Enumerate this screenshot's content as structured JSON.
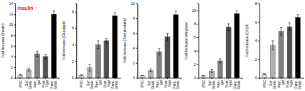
{
  "chart_data": [
    {
      "type": "bar",
      "ylabel": "Fold Increase (Insulin)",
      "categories": [
        "iPSC",
        "Def.\nEndo.",
        "Prim.\ngut",
        "Post.\nFgut",
        "Panc.\nEndo."
      ],
      "values": [
        0.5,
        1.5,
        4.5,
        4.0,
        12.0
      ],
      "errors": [
        0.1,
        0.3,
        0.5,
        0.4,
        0.6
      ],
      "colors": [
        "#d9d9d9",
        "#b0b0b0",
        "#808080",
        "#505050",
        "#000000"
      ],
      "ylim": [
        0,
        14
      ],
      "yticks": [
        0,
        2,
        4,
        6,
        8,
        10,
        12,
        14
      ],
      "annotations": [
        {
          "text": "Insulin ↑",
          "color": "#ff0000"
        }
      ]
    },
    {
      "type": "bar",
      "ylabel": "Fold Increase (Glucagon)",
      "categories": [
        "iPSC",
        "Def.\nEndo.",
        "Prim.\ngut",
        "Post.\nFgut",
        "Panc.\nEndo."
      ],
      "values": [
        0.3,
        1.2,
        4.0,
        4.5,
        7.5
      ],
      "errors": [
        0.05,
        0.4,
        0.5,
        0.3,
        0.4
      ],
      "colors": [
        "#d9d9d9",
        "#b0b0b0",
        "#808080",
        "#505050",
        "#000000"
      ],
      "ylim": [
        0,
        9
      ],
      "yticks": [
        0,
        2,
        4,
        6,
        8
      ]
    },
    {
      "type": "bar",
      "ylabel": "Fold Increase (Somatostatin)",
      "categories": [
        "iPSC",
        "Def.\nEndo.",
        "Prim.\ngut",
        "Post.\nFgut",
        "Panc.\nEndo."
      ],
      "values": [
        0.3,
        1.0,
        3.5,
        5.5,
        8.5
      ],
      "errors": [
        0.05,
        0.2,
        0.4,
        0.5,
        0.5
      ],
      "colors": [
        "#d9d9d9",
        "#b0b0b0",
        "#808080",
        "#505050",
        "#000000"
      ],
      "ylim": [
        0,
        10
      ],
      "yticks": [
        0,
        2,
        4,
        6,
        8,
        10
      ]
    },
    {
      "type": "bar",
      "ylabel": "Fold Increase (Amylase)",
      "categories": [
        "iPSC",
        "Def.\nEndo.",
        "Prim.\ngut",
        "Post.\nFgut",
        "Panc.\nEndo."
      ],
      "values": [
        0.3,
        1.0,
        2.5,
        7.5,
        9.5
      ],
      "errors": [
        0.05,
        0.2,
        0.3,
        0.5,
        0.4
      ],
      "colors": [
        "#d9d9d9",
        "#b0b0b0",
        "#808080",
        "#505050",
        "#000000"
      ],
      "ylim": [
        0,
        11
      ],
      "yticks": [
        0,
        2,
        4,
        6,
        8,
        10
      ]
    },
    {
      "type": "bar",
      "ylabel": "Fold Increase (CK19)",
      "categories": [
        "iPSC",
        "Def.\nEndo.",
        "Prim.\ngut",
        "Post.\nFgut",
        "Panc.\nEndo."
      ],
      "values": [
        0.4,
        3.5,
        5.0,
        5.5,
        6.5
      ],
      "errors": [
        0.05,
        0.5,
        0.4,
        0.4,
        0.3
      ],
      "colors": [
        "#d9d9d9",
        "#b0b0b0",
        "#808080",
        "#505050",
        "#000000"
      ],
      "ylim": [
        0,
        8
      ],
      "yticks": [
        0,
        2,
        4,
        6,
        8
      ]
    }
  ]
}
